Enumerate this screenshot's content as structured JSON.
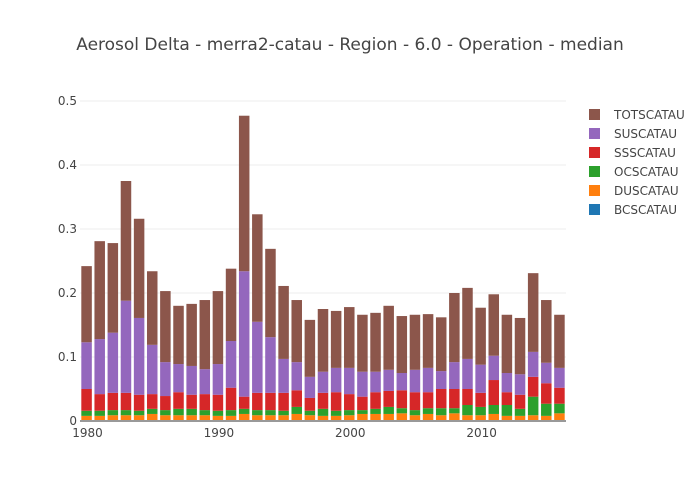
{
  "chart_data": {
    "type": "bar",
    "barmode": "stack",
    "title": "Aerosol Delta - merra2-catau - Region - 6.0 - Operation - median",
    "xlabel": "",
    "ylabel": "",
    "xlim": [
      1979.5,
      2016.5
    ],
    "ylim": [
      0,
      0.5
    ],
    "xticks": [
      1980,
      1990,
      2000,
      2010
    ],
    "xtick_labels": [
      "1980",
      "1990",
      "2000",
      "2010"
    ],
    "yticks": [
      0,
      0.1,
      0.2,
      0.3,
      0.4,
      0.5
    ],
    "ytick_labels": [
      "0",
      "0.1",
      "0.2",
      "0.3",
      "0.4",
      "0.5"
    ],
    "grid": true,
    "legend_position": "right",
    "x": [
      1980,
      1981,
      1982,
      1983,
      1984,
      1985,
      1986,
      1987,
      1988,
      1989,
      1990,
      1991,
      1992,
      1993,
      1994,
      1995,
      1996,
      1997,
      1998,
      1999,
      2000,
      2001,
      2002,
      2003,
      2004,
      2005,
      2006,
      2007,
      2008,
      2009,
      2010,
      2011,
      2012,
      2013,
      2014,
      2015,
      2016
    ],
    "series": [
      {
        "name": "BCSCATAU",
        "color": "#1f77b4",
        "values": [
          0.0015,
          0.0015,
          0.0015,
          0.0015,
          0.0015,
          0.0015,
          0.0015,
          0.0015,
          0.0015,
          0.0015,
          0.0015,
          0.0015,
          0.0015,
          0.0015,
          0.0015,
          0.0015,
          0.0015,
          0.0015,
          0.0015,
          0.0015,
          0.0015,
          0.0015,
          0.0015,
          0.0015,
          0.0015,
          0.0015,
          0.0015,
          0.0015,
          0.0015,
          0.0015,
          0.0015,
          0.0015,
          0.0015,
          0.0015,
          0.0015,
          0.0015,
          0.0015
        ]
      },
      {
        "name": "DUSCATAU",
        "color": "#ff7f0e",
        "values": [
          0.0065,
          0.0065,
          0.0075,
          0.0075,
          0.0075,
          0.0095,
          0.0075,
          0.0075,
          0.0075,
          0.0075,
          0.0065,
          0.0065,
          0.0095,
          0.0075,
          0.0075,
          0.0075,
          0.0095,
          0.0075,
          0.0065,
          0.0065,
          0.0075,
          0.0095,
          0.0095,
          0.0095,
          0.0105,
          0.0075,
          0.0095,
          0.0075,
          0.0105,
          0.0075,
          0.0075,
          0.0095,
          0.0065,
          0.0065,
          0.0075,
          0.0065,
          0.0105
        ]
      },
      {
        "name": "OCSCATAU",
        "color": "#2ca02c",
        "values": [
          0.008,
          0.008,
          0.008,
          0.008,
          0.007,
          0.008,
          0.008,
          0.01,
          0.01,
          0.008,
          0.008,
          0.009,
          0.008,
          0.008,
          0.008,
          0.007,
          0.011,
          0.007,
          0.011,
          0.008,
          0.008,
          0.006,
          0.008,
          0.011,
          0.008,
          0.008,
          0.009,
          0.011,
          0.008,
          0.016,
          0.013,
          0.014,
          0.017,
          0.011,
          0.029,
          0.019,
          0.015
        ]
      },
      {
        "name": "SSSCATAU",
        "color": "#d62728",
        "values": [
          0.034,
          0.026,
          0.027,
          0.027,
          0.025,
          0.023,
          0.022,
          0.026,
          0.022,
          0.025,
          0.025,
          0.035,
          0.019,
          0.027,
          0.027,
          0.028,
          0.026,
          0.02,
          0.025,
          0.029,
          0.025,
          0.021,
          0.026,
          0.025,
          0.028,
          0.028,
          0.025,
          0.03,
          0.03,
          0.025,
          0.022,
          0.039,
          0.02,
          0.022,
          0.031,
          0.032,
          0.025
        ]
      },
      {
        "name": "SUSCATAU",
        "color": "#9467bd",
        "values": [
          0.073,
          0.086,
          0.094,
          0.144,
          0.12,
          0.077,
          0.053,
          0.044,
          0.045,
          0.039,
          0.048,
          0.073,
          0.196,
          0.111,
          0.087,
          0.053,
          0.044,
          0.033,
          0.033,
          0.038,
          0.041,
          0.039,
          0.032,
          0.033,
          0.027,
          0.035,
          0.038,
          0.028,
          0.042,
          0.047,
          0.044,
          0.038,
          0.03,
          0.032,
          0.039,
          0.032,
          0.031
        ]
      },
      {
        "name": "TOTSCATAU",
        "color": "#8c564b",
        "values": [
          0.119,
          0.153,
          0.14,
          0.187,
          0.155,
          0.115,
          0.111,
          0.091,
          0.097,
          0.108,
          0.114,
          0.113,
          0.243,
          0.168,
          0.138,
          0.114,
          0.097,
          0.089,
          0.098,
          0.089,
          0.095,
          0.089,
          0.092,
          0.1,
          0.089,
          0.086,
          0.084,
          0.084,
          0.108,
          0.111,
          0.089,
          0.096,
          0.091,
          0.088,
          0.123,
          0.098,
          0.083
        ]
      }
    ],
    "legend_order": [
      "TOTSCATAU",
      "SUSCATAU",
      "SSSCATAU",
      "OCSCATAU",
      "DUSCATAU",
      "BCSCATAU"
    ]
  }
}
